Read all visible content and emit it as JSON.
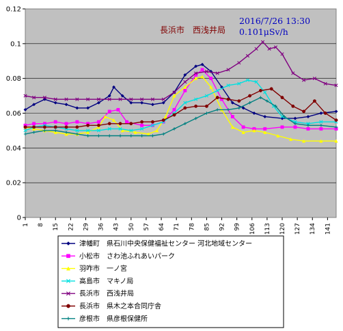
{
  "chart_data": {
    "type": "line",
    "title": "",
    "xlabel": "",
    "ylabel": "",
    "ylim": [
      0,
      0.12
    ],
    "yticks": [
      "0",
      "0.02",
      "0.04",
      "0.06",
      "0.08",
      "0.1",
      "0.12"
    ],
    "ytick_values": [
      0,
      0.02,
      0.04,
      0.06,
      0.08,
      0.1,
      0.12
    ],
    "xlim": [
      1,
      145
    ],
    "xticks": [
      "1",
      "8",
      "15",
      "22",
      "29",
      "36",
      "43",
      "50",
      "57",
      "64",
      "71",
      "78",
      "85",
      "92",
      "99",
      "106",
      "113",
      "120",
      "127",
      "134",
      "141"
    ],
    "xtick_values": [
      1,
      8,
      15,
      22,
      29,
      36,
      43,
      50,
      57,
      64,
      71,
      78,
      85,
      92,
      99,
      106,
      113,
      120,
      127,
      134,
      141
    ],
    "grid": "horizontal",
    "plot_background": "#c0c0c0",
    "annotations": {
      "place": "長浜市　西浅井局",
      "datetime": "2016/7/26 13:30",
      "value": "0.101μSv/h"
    },
    "legend_position": "bottom",
    "series": [
      {
        "name": "津幡町　県石川中央保健福祉センター 河北地域センター",
        "color": "#000080",
        "marker": "diamond",
        "points": [
          [
            1,
            0.062
          ],
          [
            5,
            0.065
          ],
          [
            10,
            0.068
          ],
          [
            15,
            0.066
          ],
          [
            20,
            0.065
          ],
          [
            25,
            0.063
          ],
          [
            30,
            0.063
          ],
          [
            35,
            0.066
          ],
          [
            40,
            0.07
          ],
          [
            42,
            0.075
          ],
          [
            46,
            0.07
          ],
          [
            50,
            0.066
          ],
          [
            55,
            0.066
          ],
          [
            60,
            0.065
          ],
          [
            65,
            0.066
          ],
          [
            70,
            0.072
          ],
          [
            75,
            0.082
          ],
          [
            80,
            0.087
          ],
          [
            83,
            0.088
          ],
          [
            87,
            0.084
          ],
          [
            92,
            0.075
          ],
          [
            97,
            0.066
          ],
          [
            102,
            0.063
          ],
          [
            107,
            0.06
          ],
          [
            112,
            0.058
          ],
          [
            120,
            0.057
          ],
          [
            126,
            0.057
          ],
          [
            132,
            0.058
          ],
          [
            138,
            0.06
          ],
          [
            145,
            0.061
          ]
        ]
      },
      {
        "name": "小松市　さわ池ふれあいパーク",
        "color": "#ff00ff",
        "marker": "square",
        "points": [
          [
            1,
            0.053
          ],
          [
            5,
            0.054
          ],
          [
            10,
            0.054
          ],
          [
            15,
            0.055
          ],
          [
            20,
            0.054
          ],
          [
            25,
            0.055
          ],
          [
            30,
            0.054
          ],
          [
            35,
            0.055
          ],
          [
            40,
            0.061
          ],
          [
            44,
            0.062
          ],
          [
            48,
            0.055
          ],
          [
            55,
            0.053
          ],
          [
            60,
            0.053
          ],
          [
            65,
            0.055
          ],
          [
            70,
            0.062
          ],
          [
            75,
            0.073
          ],
          [
            80,
            0.082
          ],
          [
            83,
            0.085
          ],
          [
            87,
            0.08
          ],
          [
            92,
            0.068
          ],
          [
            97,
            0.058
          ],
          [
            102,
            0.052
          ],
          [
            107,
            0.051
          ],
          [
            112,
            0.051
          ],
          [
            120,
            0.052
          ],
          [
            126,
            0.052
          ],
          [
            132,
            0.051
          ],
          [
            138,
            0.051
          ],
          [
            145,
            0.051
          ]
        ]
      },
      {
        "name": "羽咋市　一ノ宮",
        "color": "#ffff00",
        "marker": "triangle",
        "points": [
          [
            1,
            0.052
          ],
          [
            5,
            0.051
          ],
          [
            10,
            0.05
          ],
          [
            15,
            0.049
          ],
          [
            20,
            0.048
          ],
          [
            25,
            0.048
          ],
          [
            30,
            0.049
          ],
          [
            35,
            0.052
          ],
          [
            38,
            0.058
          ],
          [
            42,
            0.056
          ],
          [
            46,
            0.05
          ],
          [
            52,
            0.049
          ],
          [
            58,
            0.048
          ],
          [
            62,
            0.05
          ],
          [
            66,
            0.058
          ],
          [
            70,
            0.07
          ],
          [
            75,
            0.075
          ],
          [
            80,
            0.08
          ],
          [
            83,
            0.081
          ],
          [
            87,
            0.075
          ],
          [
            92,
            0.062
          ],
          [
            97,
            0.052
          ],
          [
            102,
            0.049
          ],
          [
            107,
            0.05
          ],
          [
            112,
            0.049
          ],
          [
            118,
            0.047
          ],
          [
            124,
            0.045
          ],
          [
            130,
            0.044
          ],
          [
            138,
            0.044
          ],
          [
            145,
            0.044
          ]
        ]
      },
      {
        "name": "高島市　マキノ局",
        "color": "#00e0e0",
        "marker": "x",
        "points": [
          [
            1,
            0.05
          ],
          [
            5,
            0.052
          ],
          [
            10,
            0.053
          ],
          [
            15,
            0.052
          ],
          [
            20,
            0.051
          ],
          [
            25,
            0.05
          ],
          [
            30,
            0.05
          ],
          [
            35,
            0.05
          ],
          [
            40,
            0.051
          ],
          [
            45,
            0.051
          ],
          [
            50,
            0.05
          ],
          [
            55,
            0.051
          ],
          [
            60,
            0.053
          ],
          [
            65,
            0.055
          ],
          [
            70,
            0.06
          ],
          [
            75,
            0.066
          ],
          [
            80,
            0.068
          ],
          [
            85,
            0.07
          ],
          [
            90,
            0.073
          ],
          [
            95,
            0.076
          ],
          [
            100,
            0.077
          ],
          [
            104,
            0.079
          ],
          [
            108,
            0.078
          ],
          [
            112,
            0.072
          ],
          [
            116,
            0.064
          ],
          [
            120,
            0.058
          ],
          [
            126,
            0.055
          ],
          [
            132,
            0.054
          ],
          [
            138,
            0.055
          ],
          [
            145,
            0.055
          ]
        ]
      },
      {
        "name": "長浜市　西浅井局",
        "color": "#800080",
        "marker": "x",
        "points": [
          [
            1,
            0.07
          ],
          [
            5,
            0.069
          ],
          [
            10,
            0.069
          ],
          [
            15,
            0.068
          ],
          [
            20,
            0.068
          ],
          [
            25,
            0.068
          ],
          [
            30,
            0.068
          ],
          [
            35,
            0.068
          ],
          [
            40,
            0.068
          ],
          [
            45,
            0.068
          ],
          [
            50,
            0.068
          ],
          [
            55,
            0.068
          ],
          [
            60,
            0.068
          ],
          [
            65,
            0.068
          ],
          [
            70,
            0.072
          ],
          [
            75,
            0.078
          ],
          [
            80,
            0.083
          ],
          [
            85,
            0.084
          ],
          [
            90,
            0.083
          ],
          [
            95,
            0.085
          ],
          [
            100,
            0.089
          ],
          [
            104,
            0.093
          ],
          [
            108,
            0.097
          ],
          [
            111,
            0.101
          ],
          [
            114,
            0.097
          ],
          [
            117,
            0.098
          ],
          [
            120,
            0.094
          ],
          [
            125,
            0.083
          ],
          [
            130,
            0.079
          ],
          [
            135,
            0.08
          ],
          [
            140,
            0.077
          ],
          [
            145,
            0.076
          ]
        ]
      },
      {
        "name": "長浜市　県木之本合同庁舎",
        "color": "#800000",
        "marker": "circle",
        "points": [
          [
            1,
            0.052
          ],
          [
            5,
            0.052
          ],
          [
            10,
            0.052
          ],
          [
            15,
            0.052
          ],
          [
            20,
            0.052
          ],
          [
            25,
            0.052
          ],
          [
            30,
            0.053
          ],
          [
            35,
            0.053
          ],
          [
            40,
            0.054
          ],
          [
            45,
            0.054
          ],
          [
            50,
            0.054
          ],
          [
            55,
            0.055
          ],
          [
            60,
            0.055
          ],
          [
            65,
            0.056
          ],
          [
            70,
            0.059
          ],
          [
            75,
            0.063
          ],
          [
            80,
            0.064
          ],
          [
            85,
            0.064
          ],
          [
            90,
            0.069
          ],
          [
            95,
            0.068
          ],
          [
            100,
            0.067
          ],
          [
            105,
            0.07
          ],
          [
            110,
            0.073
          ],
          [
            115,
            0.074
          ],
          [
            120,
            0.069
          ],
          [
            125,
            0.064
          ],
          [
            130,
            0.061
          ],
          [
            135,
            0.067
          ],
          [
            140,
            0.06
          ],
          [
            145,
            0.056
          ]
        ]
      },
      {
        "name": "彦根市　県彦根保健所",
        "color": "#008080",
        "marker": "cross",
        "points": [
          [
            1,
            0.048
          ],
          [
            5,
            0.049
          ],
          [
            10,
            0.05
          ],
          [
            15,
            0.05
          ],
          [
            20,
            0.049
          ],
          [
            25,
            0.048
          ],
          [
            30,
            0.047
          ],
          [
            35,
            0.047
          ],
          [
            40,
            0.047
          ],
          [
            45,
            0.047
          ],
          [
            50,
            0.047
          ],
          [
            55,
            0.047
          ],
          [
            60,
            0.047
          ],
          [
            65,
            0.048
          ],
          [
            70,
            0.051
          ],
          [
            75,
            0.054
          ],
          [
            80,
            0.057
          ],
          [
            85,
            0.06
          ],
          [
            90,
            0.062
          ],
          [
            95,
            0.062
          ],
          [
            100,
            0.063
          ],
          [
            105,
            0.066
          ],
          [
            110,
            0.069
          ],
          [
            113,
            0.067
          ],
          [
            117,
            0.064
          ],
          [
            121,
            0.058
          ],
          [
            126,
            0.054
          ],
          [
            132,
            0.053
          ],
          [
            138,
            0.053
          ],
          [
            145,
            0.052
          ]
        ]
      }
    ]
  }
}
